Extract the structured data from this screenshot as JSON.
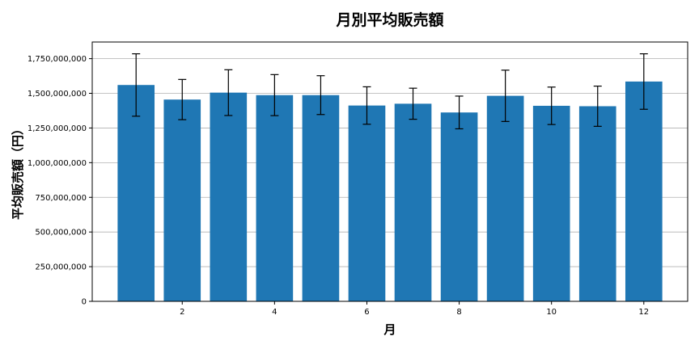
{
  "chart_data": {
    "type": "bar",
    "title": "月別平均販売額",
    "xlabel": "月",
    "ylabel": "平均販売額（円）",
    "categories": [
      1,
      2,
      3,
      4,
      5,
      6,
      7,
      8,
      9,
      10,
      11,
      12
    ],
    "values": [
      1560000000,
      1455000000,
      1505000000,
      1487000000,
      1487000000,
      1412000000,
      1425000000,
      1362000000,
      1482000000,
      1410000000,
      1407000000,
      1585000000
    ],
    "error": [
      225000000,
      145000000,
      165000000,
      148000000,
      140000000,
      135000000,
      112000000,
      118000000,
      185000000,
      135000000,
      145000000,
      200000000
    ],
    "x_ticks": [
      2,
      4,
      6,
      8,
      10,
      12
    ],
    "y_ticks": [
      0,
      250000000,
      500000000,
      750000000,
      1000000000,
      1250000000,
      1500000000,
      1750000000
    ],
    "y_tick_labels": [
      "0",
      "250,000,000",
      "500,000,000",
      "750,000,000",
      "1,000,000,000",
      "1,250,000,000",
      "1,500,000,000",
      "1,750,000,000"
    ],
    "ylim": [
      0,
      1870000000
    ],
    "xlim": [
      0.05,
      12.95
    ],
    "grid": "y",
    "bar_color": "#1f77b4",
    "error_color": "#000000"
  }
}
